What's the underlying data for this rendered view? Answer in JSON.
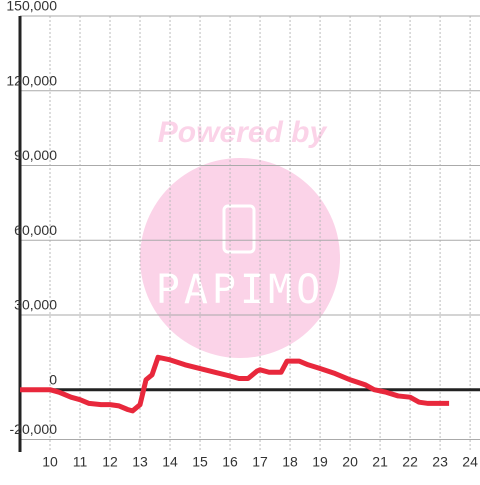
{
  "chart_data": {
    "type": "line",
    "watermark": {
      "text": "Powered by",
      "logo": "PAPIMO"
    },
    "x": [
      9.0,
      10.0,
      10.3,
      10.7,
      11.0,
      11.3,
      11.7,
      12.0,
      12.3,
      12.6,
      12.75,
      13.0,
      13.2,
      13.4,
      13.6,
      14.0,
      14.5,
      15.0,
      15.5,
      16.0,
      16.3,
      16.6,
      16.9,
      17.0,
      17.3,
      17.7,
      17.9,
      18.3,
      18.6,
      19.0,
      19.5,
      20.0,
      20.5,
      20.8,
      21.2,
      21.6,
      22.0,
      22.3,
      22.6,
      23.0,
      23.3
    ],
    "series": [
      {
        "color": "#e8283c",
        "values": [
          0,
          0,
          -1000,
          -3000,
          -4000,
          -5500,
          -6000,
          -6000,
          -6500,
          -8000,
          -8500,
          -6000,
          4000,
          6000,
          13000,
          12000,
          10000,
          8500,
          7000,
          5500,
          4500,
          4500,
          7500,
          8000,
          7000,
          7000,
          11500,
          11500,
          10000,
          8500,
          6500,
          4000,
          2000,
          0,
          -1000,
          -2500,
          -3000,
          -5000,
          -5500,
          -5500,
          -5500
        ]
      }
    ],
    "xlim": [
      9,
      24.33
    ],
    "xticks": [
      10,
      11,
      12,
      13,
      14,
      15,
      16,
      17,
      18,
      19,
      20,
      21,
      22,
      23,
      24
    ],
    "ylim": [
      -25000,
      150000
    ],
    "yticks": [
      {
        "value": -20000,
        "label": "-20,000"
      },
      0,
      {
        "value": 30000,
        "label": "30,000"
      },
      {
        "value": 60000,
        "label": "60,000"
      },
      {
        "value": 90000,
        "label": "90,000"
      },
      {
        "value": 120000,
        "label": "120,000"
      },
      {
        "value": 150000,
        "label": "150,000"
      }
    ],
    "grid": true
  }
}
